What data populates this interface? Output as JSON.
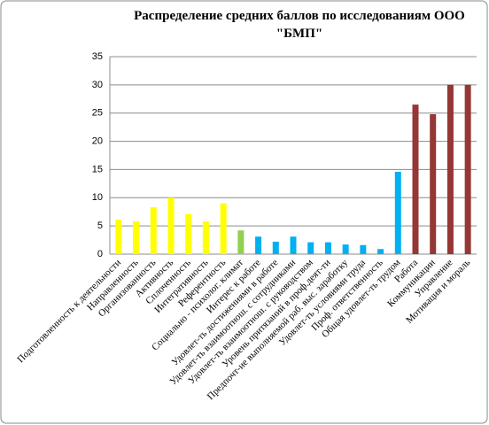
{
  "chart_data": {
    "type": "bar",
    "title": [
      "Распределение средних баллов  по исследованиям ООО",
      "\"БМП\""
    ],
    "categories": [
      "Подготовленность к деятельности",
      "Направленность",
      "Организованность",
      "Активность",
      "Сплоченность",
      "Интегративность",
      "Референтность",
      "Социально - психолог. климат",
      "Интерес к работе",
      "Удовлет-ть достижениями в работе",
      "Удовлет-ть взаимоотнош. с сотрудниками",
      "Удовлет-ть взаимоотнош. с руководством",
      "Уровень притязаний в проф.деят-ти",
      "Предпочт-ие выполняемой раб. выс. заработку",
      "Удовлет-ть условиями труда",
      "Проф. ответственность",
      "Общая удовлет-ть трудом",
      "Работа",
      "Коммуникации",
      "Управление",
      "Мотивация и мораль"
    ],
    "values": [
      6.1,
      5.8,
      8.3,
      10,
      7.1,
      5.8,
      9,
      4.2,
      3.1,
      2.2,
      3.1,
      2.1,
      2.1,
      1.7,
      1.6,
      0.9,
      14.6,
      26.5,
      24.8,
      30,
      30
    ],
    "colors": [
      "#ffff00",
      "#ffff00",
      "#ffff00",
      "#ffff00",
      "#ffff00",
      "#ffff00",
      "#ffff00",
      "#92d050",
      "#00b0f0",
      "#00b0f0",
      "#00b0f0",
      "#00b0f0",
      "#00b0f0",
      "#00b0f0",
      "#00b0f0",
      "#00b0f0",
      "#00b0f0",
      "#953735",
      "#953735",
      "#953735",
      "#953735"
    ],
    "ylim": [
      0,
      35
    ],
    "yticks": [
      0,
      5,
      10,
      15,
      20,
      25,
      30,
      35
    ],
    "grid": true
  }
}
